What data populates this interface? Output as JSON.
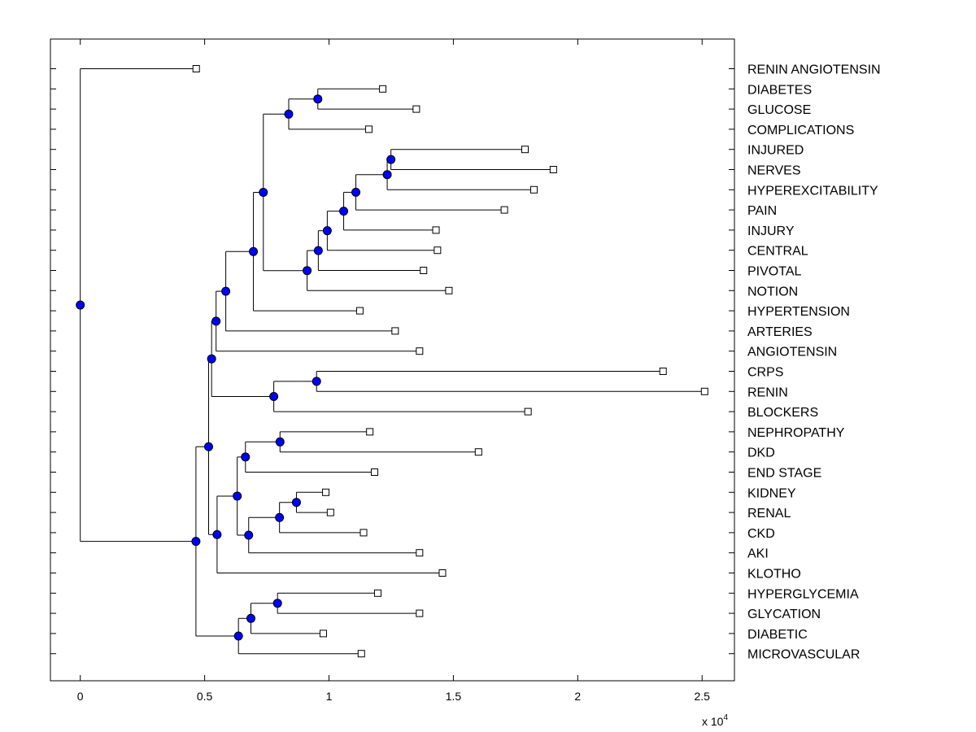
{
  "chart_data": {
    "type": "dendrogram",
    "title": "",
    "xlabel": "",
    "ylabel": "",
    "x_scale_label": "x 10",
    "x_scale_exponent": "4",
    "xlim": [
      -0.12,
      2.63
    ],
    "xticks": [
      0,
      0.5,
      1,
      1.5,
      2,
      2.5
    ],
    "xtick_labels": [
      "0",
      "0.5",
      "1",
      "1.5",
      "2",
      "2.5"
    ],
    "grid": false,
    "leaves": [
      {
        "label": "RENIN ANGIOTENSIN",
        "x": 0.466
      },
      {
        "label": "DIABETES",
        "x": 1.216
      },
      {
        "label": "GLUCOSE",
        "x": 1.351
      },
      {
        "label": "COMPLICATIONS",
        "x": 1.16
      },
      {
        "label": "INJURED",
        "x": 1.788
      },
      {
        "label": "NERVES",
        "x": 1.902
      },
      {
        "label": "HYPEREXCITABILITY",
        "x": 1.824
      },
      {
        "label": "PAIN",
        "x": 1.705
      },
      {
        "label": "INJURY",
        "x": 1.43
      },
      {
        "label": "CENTRAL",
        "x": 1.436
      },
      {
        "label": "PIVOTAL",
        "x": 1.38
      },
      {
        "label": "NOTION",
        "x": 1.482
      },
      {
        "label": "HYPERTENSION",
        "x": 1.124
      },
      {
        "label": "ARTERIES",
        "x": 1.266
      },
      {
        "label": "ANGIOTENSIN",
        "x": 1.364
      },
      {
        "label": "CRPS",
        "x": 2.343
      },
      {
        "label": "RENIN",
        "x": 2.51
      },
      {
        "label": "BLOCKERS",
        "x": 1.8
      },
      {
        "label": "NEPHROPATHY",
        "x": 1.164
      },
      {
        "label": "DKD",
        "x": 1.601
      },
      {
        "label": "END STAGE",
        "x": 1.183
      },
      {
        "label": "KIDNEY",
        "x": 0.987
      },
      {
        "label": "RENAL",
        "x": 1.006
      },
      {
        "label": "CKD",
        "x": 1.139
      },
      {
        "label": "AKI",
        "x": 1.364
      },
      {
        "label": "KLOTHO",
        "x": 1.456
      },
      {
        "label": "HYPERGLYCEMIA",
        "x": 1.196
      },
      {
        "label": "GLYCATION",
        "x": 1.364
      },
      {
        "label": "DIABETIC",
        "x": 0.977
      },
      {
        "label": "MICROVASCULAR",
        "x": 1.13
      }
    ],
    "internal_nodes": [
      {
        "id": "n_diab_gluc",
        "x": 0.955,
        "children": [
          "L1",
          "L2"
        ]
      },
      {
        "id": "n_comp",
        "x": 0.838,
        "children": [
          "n_diab_gluc",
          "L3"
        ]
      },
      {
        "id": "n_inj_nerv",
        "x": 1.249,
        "children": [
          "L4",
          "L5"
        ]
      },
      {
        "id": "n_hyperex",
        "x": 1.234,
        "children": [
          "n_inj_nerv",
          "L6"
        ]
      },
      {
        "id": "n_pain",
        "x": 1.108,
        "children": [
          "n_hyperex",
          "L7"
        ]
      },
      {
        "id": "n_injury",
        "x": 1.059,
        "children": [
          "n_pain",
          "L8"
        ]
      },
      {
        "id": "n_central",
        "x": 0.993,
        "children": [
          "n_injury",
          "L9"
        ]
      },
      {
        "id": "n_pivotal",
        "x": 0.957,
        "children": [
          "n_central",
          "L10"
        ]
      },
      {
        "id": "n_notion",
        "x": 0.912,
        "children": [
          "n_pivotal",
          "L11"
        ]
      },
      {
        "id": "n_mid",
        "x": 0.736,
        "children": [
          "n_comp",
          "n_notion"
        ]
      },
      {
        "id": "n_hypert",
        "x": 0.696,
        "children": [
          "n_mid",
          "L12"
        ]
      },
      {
        "id": "n_arter",
        "x": 0.585,
        "children": [
          "n_hypert",
          "L13"
        ]
      },
      {
        "id": "n_angio",
        "x": 0.546,
        "children": [
          "n_arter",
          "L14"
        ]
      },
      {
        "id": "n_crps_renin",
        "x": 0.95,
        "children": [
          "L15",
          "L16"
        ]
      },
      {
        "id": "n_blockers",
        "x": 0.778,
        "children": [
          "n_crps_renin",
          "L17"
        ]
      },
      {
        "id": "n_upper",
        "x": 0.528,
        "children": [
          "n_angio",
          "n_blockers"
        ]
      },
      {
        "id": "n_neph_dkd",
        "x": 0.803,
        "children": [
          "L18",
          "L19"
        ]
      },
      {
        "id": "n_endst",
        "x": 0.664,
        "children": [
          "n_neph_dkd",
          "L20"
        ]
      },
      {
        "id": "n_kid_ren",
        "x": 0.869,
        "children": [
          "L21",
          "L22"
        ]
      },
      {
        "id": "n_ckd",
        "x": 0.801,
        "children": [
          "n_kid_ren",
          "L23"
        ]
      },
      {
        "id": "n_aki",
        "x": 0.677,
        "children": [
          "n_ckd",
          "L24"
        ]
      },
      {
        "id": "n_kidneys",
        "x": 0.631,
        "children": [
          "n_endst",
          "n_aki"
        ]
      },
      {
        "id": "n_klotho",
        "x": 0.55,
        "children": [
          "n_kidneys",
          "L25"
        ]
      },
      {
        "id": "n_bigmid",
        "x": 0.516,
        "children": [
          "n_upper",
          "n_klotho"
        ]
      },
      {
        "id": "n_hg_gly",
        "x": 0.793,
        "children": [
          "L26",
          "L27"
        ]
      },
      {
        "id": "n_diabetic",
        "x": 0.686,
        "children": [
          "n_hg_gly",
          "L28"
        ]
      },
      {
        "id": "n_micro",
        "x": 0.636,
        "children": [
          "n_diabetic",
          "L29"
        ]
      },
      {
        "id": "n_lower",
        "x": 0.465,
        "children": [
          "n_bigmid",
          "n_micro"
        ]
      },
      {
        "id": "n_root",
        "x": 0.0,
        "children": [
          "L0",
          "n_lower"
        ]
      }
    ]
  }
}
